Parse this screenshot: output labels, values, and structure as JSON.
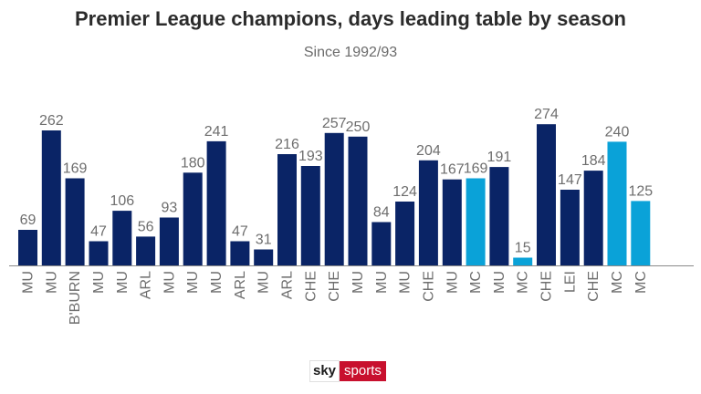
{
  "chart_data": {
    "type": "bar",
    "title": "Premier League champions, days leading table by season",
    "subtitle": "Since 1992/93",
    "categories": [
      "MU",
      "MU",
      "B'BURN",
      "MU",
      "MU",
      "ARL",
      "MU",
      "MU",
      "MU",
      "ARL",
      "MU",
      "ARL",
      "CHE",
      "CHE",
      "MU",
      "MU",
      "MU",
      "CHE",
      "MU",
      "MC",
      "MU",
      "MC",
      "CHE",
      "LEI",
      "CHE",
      "MC",
      "MC"
    ],
    "values": [
      69,
      262,
      169,
      47,
      106,
      56,
      93,
      180,
      241,
      47,
      31,
      216,
      193,
      257,
      250,
      84,
      124,
      204,
      167,
      169,
      191,
      15,
      274,
      147,
      184,
      240,
      125
    ],
    "highlight": [
      false,
      false,
      false,
      false,
      false,
      false,
      false,
      false,
      false,
      false,
      false,
      false,
      false,
      false,
      false,
      false,
      false,
      false,
      false,
      true,
      false,
      true,
      false,
      false,
      false,
      true,
      true
    ],
    "colors": {
      "default": "#0a2466",
      "highlight": "#0aa2d8",
      "axis": "#8a8a8a"
    },
    "ylim": [
      0,
      300
    ],
    "grid": false,
    "legend": "none"
  },
  "brand": {
    "sky": "sky",
    "sports": "sports"
  }
}
